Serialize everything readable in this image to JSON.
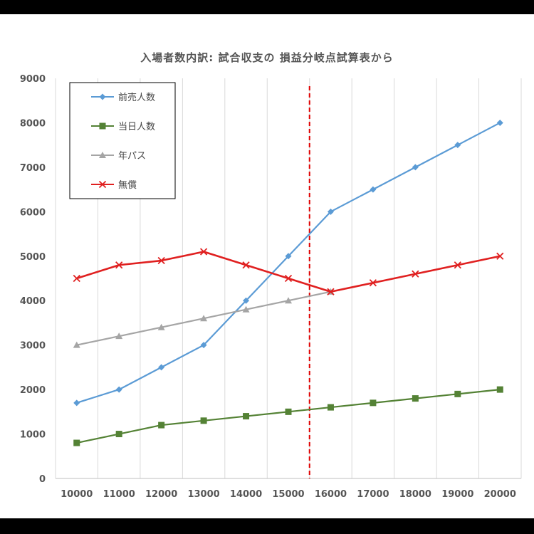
{
  "chart_data": {
    "type": "line",
    "title": "入場者数内訳: 試合収支の 損益分岐点試算表から",
    "xlabel": "",
    "ylabel": "",
    "x": [
      10000,
      11000,
      12000,
      13000,
      14000,
      15000,
      16000,
      17000,
      18000,
      19000,
      20000
    ],
    "ylim": [
      0,
      9000
    ],
    "yticks": [
      0,
      1000,
      2000,
      3000,
      4000,
      5000,
      6000,
      7000,
      8000,
      9000
    ],
    "grid": "vertical",
    "legend_position": "top-left",
    "reference_line": {
      "x": 15500,
      "style": "dashed",
      "color": "#e00000"
    },
    "series": [
      {
        "name": "前売人数",
        "color": "#5b9bd5",
        "marker": "diamond",
        "values": [
          1700,
          2000,
          2500,
          3000,
          4000,
          5000,
          6000,
          6500,
          7000,
          7500,
          8000
        ]
      },
      {
        "name": "当日人数",
        "color": "#548235",
        "marker": "square",
        "values": [
          800,
          1000,
          1200,
          1300,
          1400,
          1500,
          1600,
          1700,
          1800,
          1900,
          2000
        ]
      },
      {
        "name": "年パス",
        "color": "#a5a5a5",
        "marker": "triangle",
        "values": [
          3000,
          3200,
          3400,
          3600,
          3800,
          4000,
          4200,
          null,
          null,
          null,
          null
        ]
      },
      {
        "name": "無償",
        "color": "#e02020",
        "marker": "x",
        "values": [
          4500,
          4800,
          4900,
          5100,
          4800,
          4500,
          4200,
          4400,
          4600,
          4800,
          5000
        ]
      }
    ]
  }
}
